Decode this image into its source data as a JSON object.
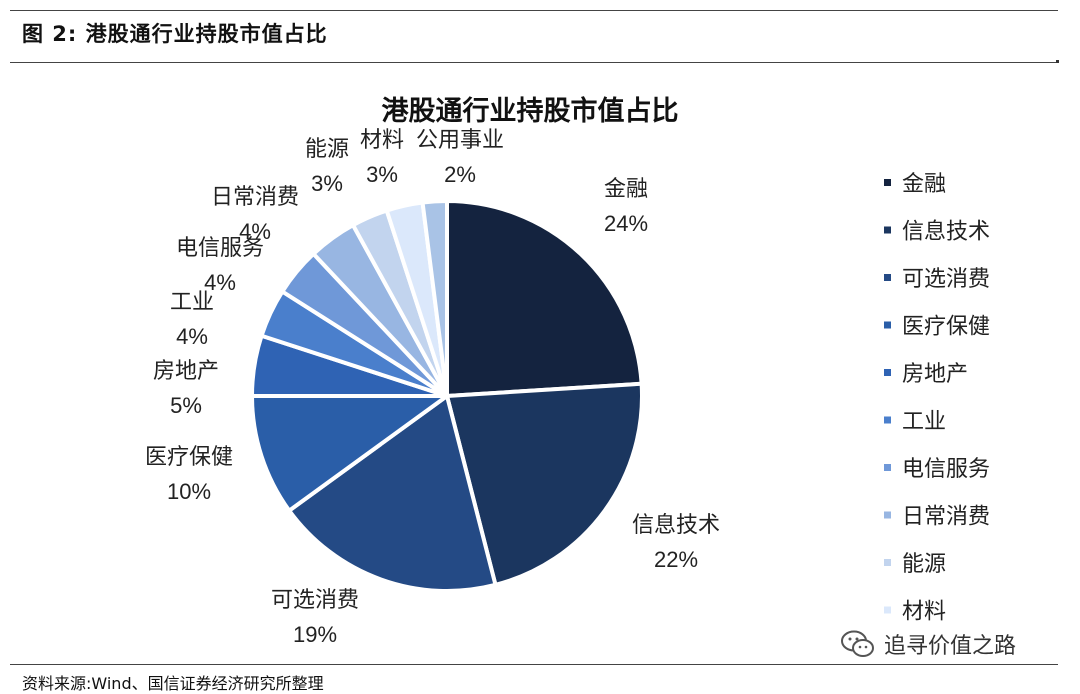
{
  "figure": {
    "caption": "图 2:  港股通行业持股市值占比",
    "source": "资料来源:Wind、国信证券经济研究所整理",
    "watermark": "追寻价值之路",
    "watermark_icon": "wechat-icon"
  },
  "chart_data": {
    "type": "pie",
    "title": "港股通行业持股市值占比",
    "slices": [
      {
        "label": "金融",
        "value": 24,
        "display": "24%",
        "color": "#14233f"
      },
      {
        "label": "信息技术",
        "value": 22,
        "display": "22%",
        "color": "#1b365f"
      },
      {
        "label": "可选消费",
        "value": 19,
        "display": "19%",
        "color": "#244a85"
      },
      {
        "label": "医疗保健",
        "value": 10,
        "display": "10%",
        "color": "#2a5ea8"
      },
      {
        "label": "房地产",
        "value": 5,
        "display": "5%",
        "color": "#2f63b4"
      },
      {
        "label": "工业",
        "value": 4,
        "display": "4%",
        "color": "#4a7fcc"
      },
      {
        "label": "电信服务",
        "value": 4,
        "display": "4%",
        "color": "#6f98d8"
      },
      {
        "label": "日常消费",
        "value": 4,
        "display": "4%",
        "color": "#98b6e2"
      },
      {
        "label": "能源",
        "value": 3,
        "display": "3%",
        "color": "#c2d4ee"
      },
      {
        "label": "材料",
        "value": 3,
        "display": "3%",
        "color": "#dbe8fb"
      },
      {
        "label": "公用事业",
        "value": 2,
        "display": "2%",
        "color": "#a9c3e6"
      }
    ],
    "legend": {
      "placement": "right",
      "entries": [
        "金融",
        "信息技术",
        "可选消费",
        "医疗保健",
        "房地产",
        "工业",
        "电信服务",
        "日常消费",
        "能源",
        "材料"
      ]
    }
  }
}
